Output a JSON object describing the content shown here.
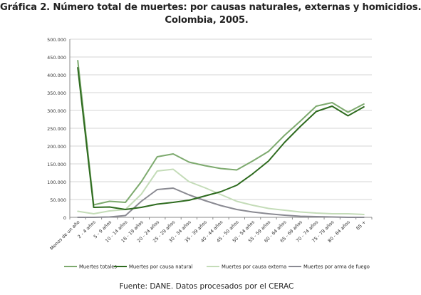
{
  "title": {
    "line1": "Gráfica 2. Número total de muertes: por causas naturales, externas y homicidios.",
    "line2": "Colombia, 2005."
  },
  "source": "Fuente: DANE. Datos procesados por el CERAC",
  "chart_data": {
    "type": "line",
    "xlabel": "",
    "ylabel": "",
    "ylim": [
      0,
      500000
    ],
    "yticks": [
      "0",
      "50.000",
      "100.000",
      "150.000",
      "200.000",
      "250.000",
      "300.000",
      "350.000",
      "400.000",
      "450.000",
      "500.000"
    ],
    "grid": "horizontal",
    "legend_position": "bottom",
    "categories": [
      "Menos de un año",
      "2 - 4 años",
      "5 - 9 años",
      "10 - 14 años",
      "16 - 19 años",
      "20 - 24 años",
      "25 - 29 años",
      "30 - 34 años",
      "35 - 39 años",
      "40 - 44 años",
      "45 - 50 años",
      "50 - 54 años",
      "55 - 59 años",
      "60 - 64 años",
      "65 - 69 años",
      "70 - 74 años",
      "75 - 79 años",
      "80 - 84 años",
      "85 +"
    ],
    "series": [
      {
        "name": "Muertes totales",
        "color": "#7daa6e",
        "values": [
          440000,
          35000,
          45000,
          42000,
          100000,
          170000,
          178000,
          155000,
          145000,
          137000,
          133000,
          158000,
          185000,
          230000,
          270000,
          312000,
          322000,
          295000,
          318000
        ]
      },
      {
        "name": "Muertes por causa natural",
        "color": "#2e6b1f",
        "values": [
          420000,
          28000,
          29000,
          22000,
          28000,
          37000,
          42000,
          48000,
          60000,
          72000,
          90000,
          122000,
          158000,
          210000,
          255000,
          297000,
          312000,
          285000,
          310000
        ]
      },
      {
        "name": "Muertes por causa externa",
        "color": "#c4dcb8",
        "values": [
          17000,
          10000,
          18000,
          22000,
          65000,
          130000,
          135000,
          100000,
          83000,
          64000,
          45000,
          34000,
          25000,
          20000,
          15000,
          12000,
          10000,
          10000,
          8000
        ]
      },
      {
        "name": "Muertes por arma de fuego",
        "color": "#8a8a92",
        "values": [
          0,
          0,
          1000,
          5000,
          45000,
          78000,
          82000,
          63000,
          47000,
          33000,
          22000,
          15000,
          10000,
          6000,
          3000,
          2000,
          1000,
          0,
          0
        ]
      }
    ]
  }
}
